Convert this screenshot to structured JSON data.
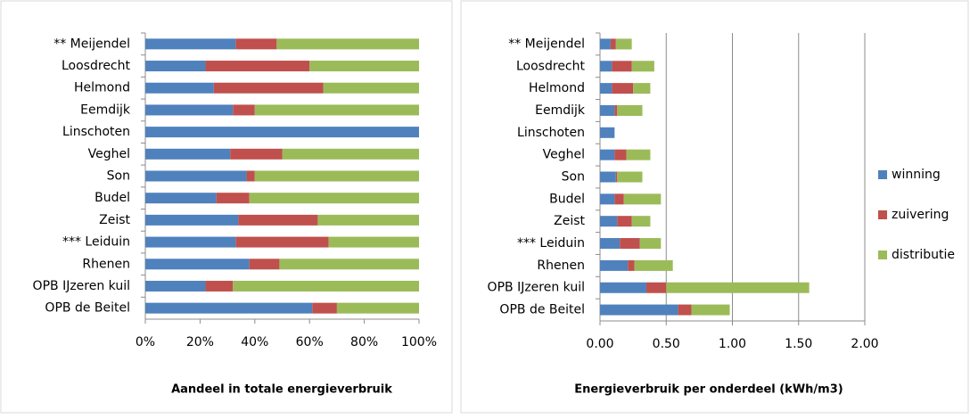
{
  "chart_data": [
    {
      "type": "bar",
      "orientation": "horizontal",
      "stacked": true,
      "x_label": "Aandeel in totale energieverbruik",
      "categories": [
        "** Meijendel",
        "Loosdrecht",
        "Helmond",
        "Eemdijk",
        "Linschoten",
        "Veghel",
        "Son",
        "Budel",
        "Zeist",
        "*** Leiduin",
        "Rhenen",
        "OPB IJzeren kuil",
        "OPB de Beitel"
      ],
      "series": [
        {
          "color": "#4f81bd",
          "values": [
            33,
            22,
            25,
            32,
            100,
            31,
            37,
            26,
            34,
            33,
            38,
            22,
            61
          ]
        },
        {
          "color": "#c0504d",
          "values": [
            15,
            38,
            40,
            8,
            0,
            19,
            3,
            12,
            29,
            34,
            11,
            10,
            9
          ]
        },
        {
          "color": "#9bbb59",
          "values": [
            52,
            40,
            35,
            60,
            0,
            50,
            60,
            62,
            37,
            33,
            51,
            68,
            30
          ]
        }
      ],
      "xlim": [
        0,
        100
      ],
      "xticks": [
        {
          "value": 0,
          "label": "0%"
        },
        {
          "value": 20,
          "label": "20%"
        },
        {
          "value": 40,
          "label": "40%"
        },
        {
          "value": 60,
          "label": "60%"
        },
        {
          "value": 80,
          "label": "80%"
        },
        {
          "value": 100,
          "label": "100%"
        }
      ],
      "grid": false
    },
    {
      "type": "bar",
      "orientation": "horizontal",
      "stacked": true,
      "x_label": "Energieverbruik per onderdeel (kWh/m3)",
      "categories": [
        "** Meijendel",
        "Loosdrecht",
        "Helmond",
        "Eemdijk",
        "Linschoten",
        "Veghel",
        "Son",
        "Budel",
        "Zeist",
        "*** Leiduin",
        "Rhenen",
        "OPB IJzeren kuil",
        "OPB de Beitel"
      ],
      "series": [
        {
          "name": "winning",
          "color": "#4f81bd",
          "values": [
            0.08,
            0.09,
            0.09,
            0.11,
            0.11,
            0.11,
            0.12,
            0.11,
            0.13,
            0.15,
            0.21,
            0.35,
            0.59
          ]
        },
        {
          "name": "zuivering",
          "color": "#c0504d",
          "values": [
            0.04,
            0.15,
            0.16,
            0.02,
            0,
            0.09,
            0.01,
            0.07,
            0.11,
            0.15,
            0.05,
            0.15,
            0.1
          ]
        },
        {
          "name": "distributie",
          "color": "#9bbb59",
          "values": [
            0.12,
            0.17,
            0.13,
            0.19,
            0,
            0.18,
            0.19,
            0.28,
            0.14,
            0.16,
            0.29,
            1.08,
            0.29
          ]
        }
      ],
      "xlim": [
        0,
        2
      ],
      "xticks": [
        {
          "value": 0,
          "label": "0.00"
        },
        {
          "value": 0.5,
          "label": "0.50"
        },
        {
          "value": 1,
          "label": "1.00"
        },
        {
          "value": 1.5,
          "label": "1.50"
        },
        {
          "value": 2,
          "label": "2.00"
        }
      ],
      "grid": true,
      "legend": "right"
    }
  ]
}
